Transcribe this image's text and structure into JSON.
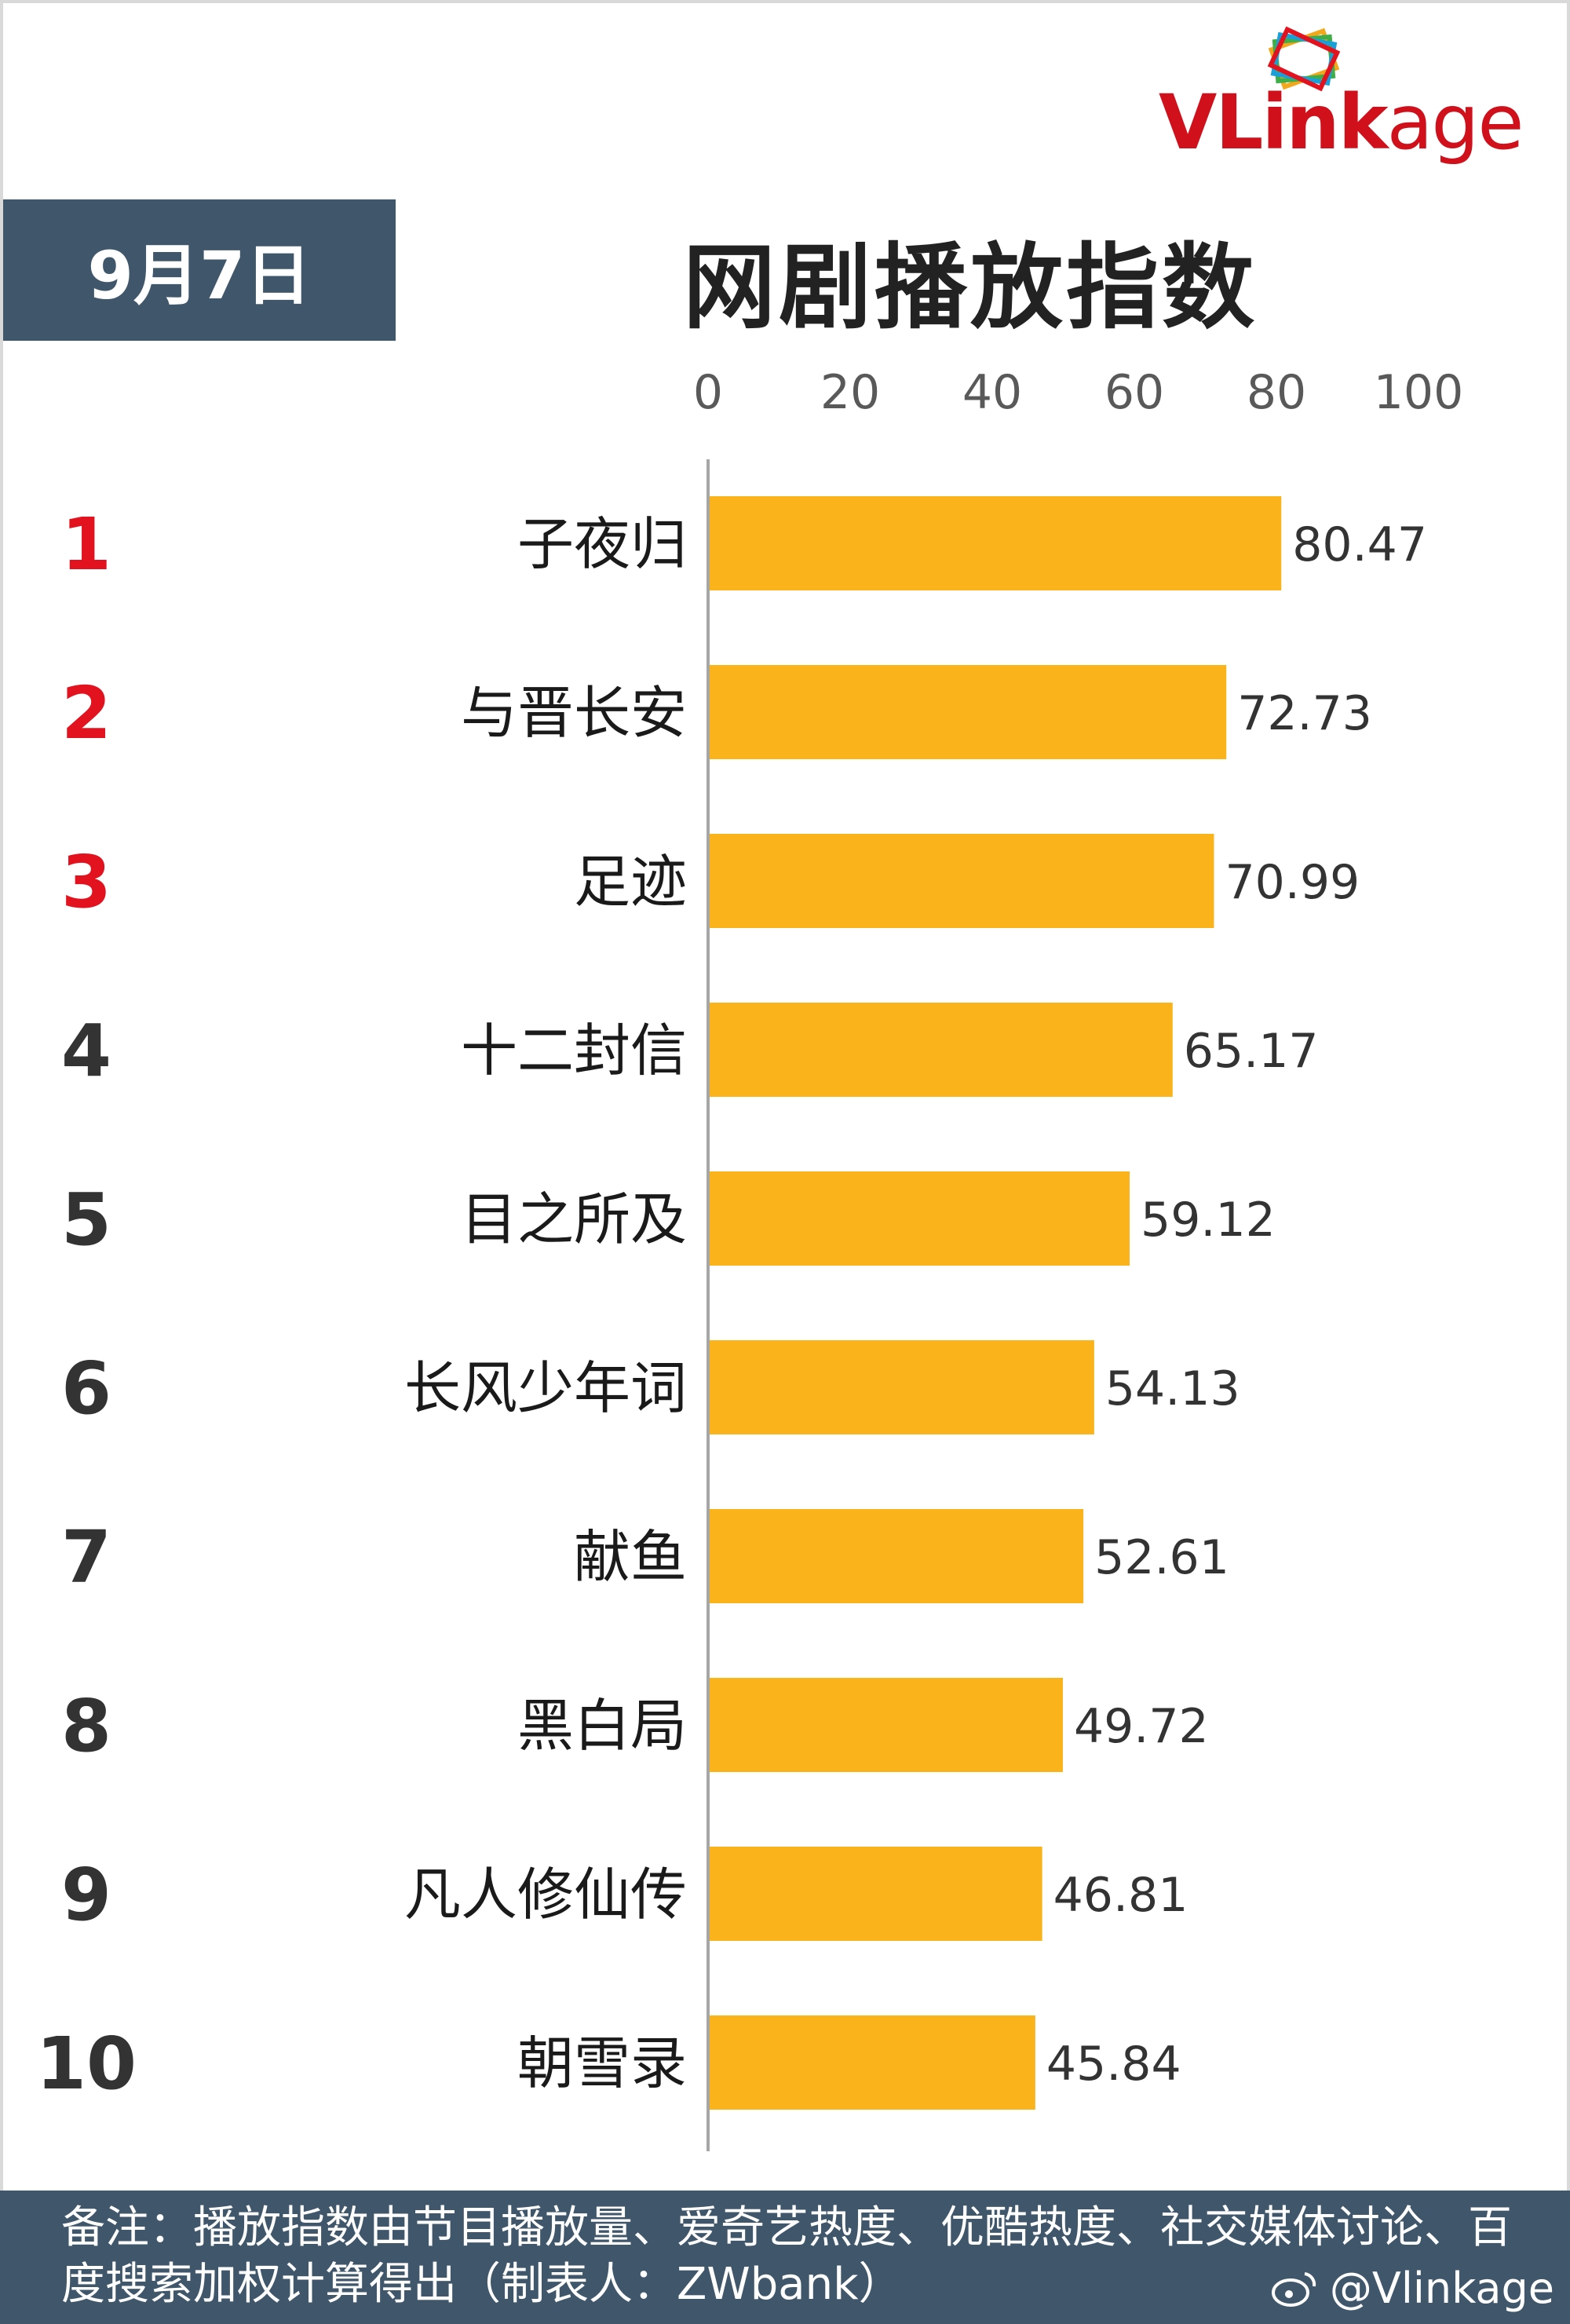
{
  "brand": {
    "logo_text_bold": "VLink",
    "logo_text_rest": "age"
  },
  "header": {
    "date": "9月7日",
    "title": "网剧播放指数"
  },
  "colors": {
    "bar": "#fbb31b",
    "top_rank": "#e3121f",
    "rank": "#333333",
    "header_bg": "#40576b"
  },
  "chart_data": {
    "type": "bar",
    "orientation": "horizontal",
    "title": "网剧播放指数",
    "xlim": [
      0,
      100
    ],
    "xticks": [
      "0",
      "20",
      "40",
      "60",
      "80",
      "100"
    ],
    "ranks": [
      "1",
      "2",
      "3",
      "4",
      "5",
      "6",
      "7",
      "8",
      "9",
      "10"
    ],
    "categories": [
      "子夜归",
      "与晋长安",
      "足迹",
      "十二封信",
      "目之所及",
      "长风少年词",
      "献鱼",
      "黑白局",
      "凡人修仙传",
      "朝雪录"
    ],
    "values": [
      80.47,
      72.73,
      70.99,
      65.17,
      59.12,
      54.13,
      52.61,
      49.72,
      46.81,
      45.84
    ],
    "value_labels": [
      "80.47",
      "72.73",
      "70.99",
      "65.17",
      "59.12",
      "54.13",
      "52.61",
      "49.72",
      "46.81",
      "45.84"
    ],
    "grid": false,
    "legend": "none"
  },
  "footer": {
    "note": "备注：播放指数由节目播放量、爱奇艺热度、优酷热度、社交媒体讨论、百度搜索加权计算得出（制表人：ZWbank）",
    "weibo_handle": "@Vlinkage"
  }
}
